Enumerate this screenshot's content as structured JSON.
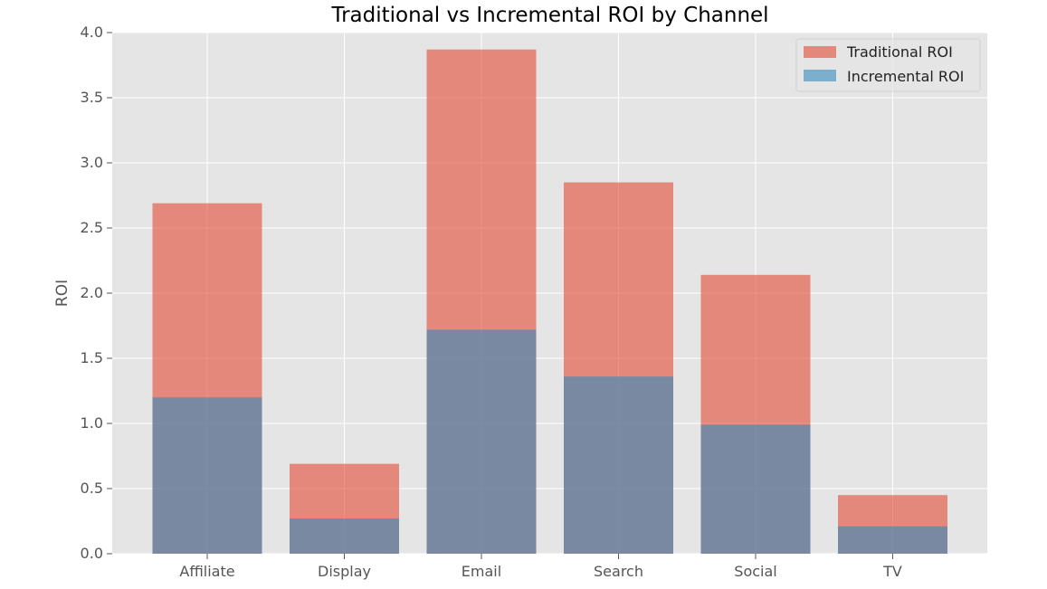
{
  "chart_data": {
    "type": "bar",
    "title": "Traditional vs Incremental ROI by Channel",
    "xlabel": "",
    "ylabel": "ROI",
    "categories": [
      "Affiliate",
      "Display",
      "Email",
      "Search",
      "Social",
      "TV"
    ],
    "series": [
      {
        "name": "Traditional ROI",
        "values": [
          2.69,
          0.69,
          3.87,
          2.85,
          2.14,
          0.45
        ],
        "color": "#E24A33"
      },
      {
        "name": "Incremental ROI",
        "values": [
          1.2,
          0.27,
          1.72,
          1.36,
          0.99,
          0.21
        ],
        "color": "#348ABD"
      }
    ],
    "ylim": [
      0,
      4.0
    ],
    "yticks": [
      0.0,
      0.5,
      1.0,
      1.5,
      2.0,
      2.5,
      3.0,
      3.5,
      4.0
    ],
    "ytick_labels": [
      "0.0",
      "0.5",
      "1.0",
      "1.5",
      "2.0",
      "2.5",
      "3.0",
      "3.5",
      "4.0"
    ],
    "grid": true,
    "legend_position": "top-right",
    "style": "ggplot",
    "background_color": "#E5E5E5",
    "grid_color": "#FFFFFF"
  }
}
